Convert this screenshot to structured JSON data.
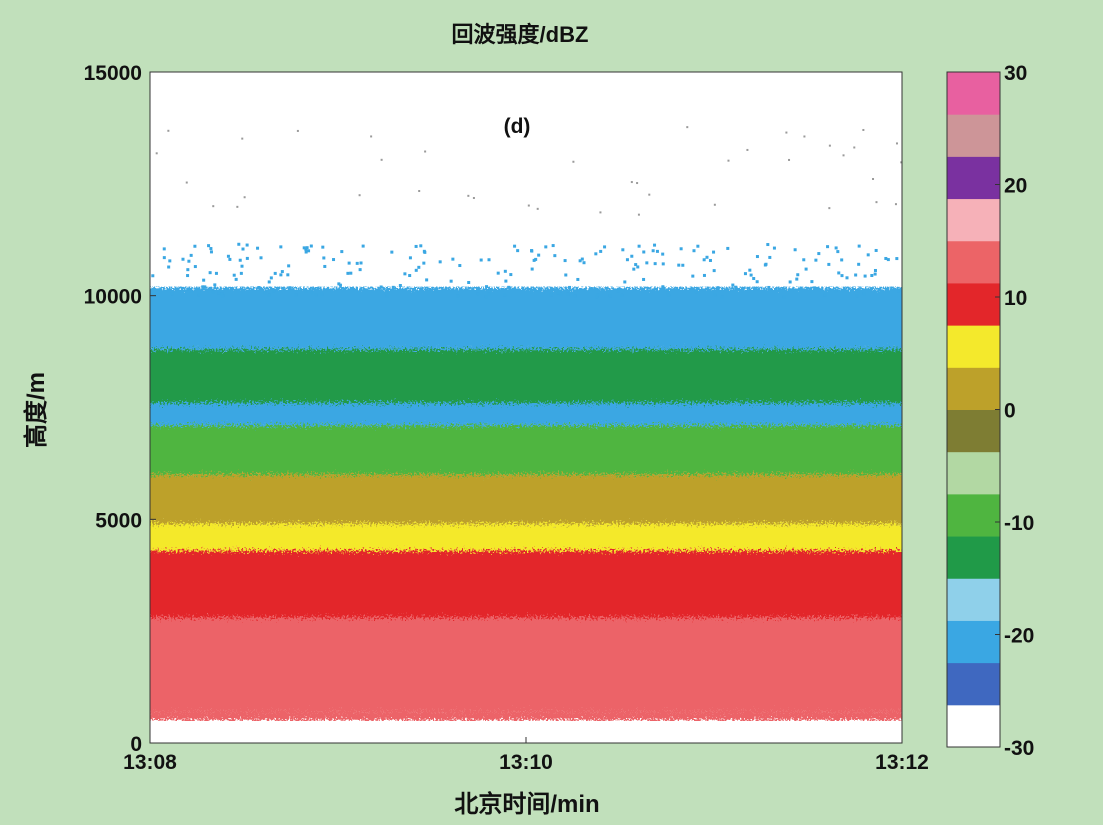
{
  "chart_data": {
    "type": "heatmap",
    "title": "回波强度/dBZ",
    "panel_label": "(d)",
    "xlabel": "北京时间/min",
    "ylabel": "高度/m",
    "x_ticks": [
      "13:08",
      "13:10",
      "13:12"
    ],
    "xlim": [
      "13:08",
      "13:12"
    ],
    "y_ticks": [
      0,
      5000,
      10000,
      15000
    ],
    "ylim": [
      0,
      15000
    ],
    "colorbar": {
      "ticks": [
        30,
        20,
        10,
        0,
        -10,
        -20,
        -30
      ],
      "range": [
        -30,
        30
      ],
      "step": 4,
      "colors_low_to_high": [
        "#ffffff",
        "#3f68c0",
        "#3aa7e3",
        "#8fd0ea",
        "#209a48",
        "#4fb540",
        "#b2d8a3",
        "#7e7d33",
        "#bda12a",
        "#f4e92c",
        "#e3262a",
        "#ec6467",
        "#f6b1b8",
        "#7a31a0",
        "#cd9598",
        "#e860a0"
      ]
    },
    "series": [
      {
        "time": "13:08",
        "top_height_m": 10200
      },
      {
        "time": "13:10",
        "top_height_m": 10000
      },
      {
        "time": "13:12",
        "top_height_m": 10200
      }
    ],
    "layers": [
      {
        "range_m": [
          500,
          700
        ],
        "dbz": 14
      },
      {
        "range_m": [
          700,
          2800
        ],
        "dbz": 17
      },
      {
        "range_m": [
          2800,
          4300
        ],
        "dbz": 10
      },
      {
        "range_m": [
          4300,
          4900
        ],
        "dbz": 6
      },
      {
        "range_m": [
          4900,
          6000
        ],
        "dbz": 2
      },
      {
        "range_m": [
          6000,
          7100
        ],
        "dbz": -7
      },
      {
        "range_m": [
          7100,
          7600
        ],
        "dbz": -22
      },
      {
        "range_m": [
          7600,
          8800
        ],
        "dbz": -13
      },
      {
        "range_m": [
          8800,
          10200
        ],
        "dbz": -19
      }
    ]
  }
}
